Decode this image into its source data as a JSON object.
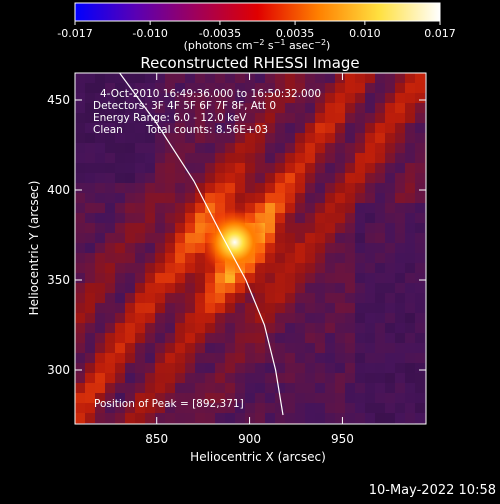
{
  "colorbar": {
    "tick_labels": [
      "-0.017",
      "-0.010",
      "-0.0035",
      "0.0035",
      "0.010",
      "0.017"
    ],
    "tick_values": [
      -0.017,
      -0.01,
      -0.0035,
      0.0035,
      0.01,
      0.017
    ],
    "range": [
      -0.017,
      0.017
    ],
    "stops": [
      "#0000ff",
      "#5a00b4",
      "#a0005a",
      "#e00000",
      "#ff8000",
      "#ffe040",
      "#ffffff"
    ]
  },
  "chart_data": {
    "type": "heatmap",
    "title": "Reconstructed RHESSI Image",
    "units_label_parts": [
      "(photons cm",
      "−2",
      " s",
      "−1",
      " asec",
      "−2",
      ")"
    ],
    "xlabel": "Heliocentric X (arcsec)",
    "ylabel": "Heliocentric Y (arcsec)",
    "xlim": [
      806,
      995
    ],
    "ylim": [
      270,
      465
    ],
    "xticks": [
      850,
      900,
      950
    ],
    "yticks": [
      300,
      350,
      400,
      450
    ],
    "annotations": {
      "time_range": "4-Oct-2010 16:49:36.000 to 16:50:32.000",
      "detectors": "Detectors: 3F 4F 5F 6F 7F 8F, Att 0",
      "energy_range": "Energy Range: 6.0 - 12.0 keV",
      "clean_label": "Clean",
      "total_counts": "Total counts: 8.56E+03",
      "peak": "Position of Peak = [892,371]"
    },
    "peak": [
      892,
      371
    ],
    "limb_curve": [
      [
        830,
        465
      ],
      [
        850,
        437
      ],
      [
        870,
        405
      ],
      [
        885,
        375
      ],
      [
        898,
        350
      ],
      [
        908,
        325
      ],
      [
        914,
        300
      ],
      [
        918,
        275
      ]
    ]
  },
  "footer": {
    "date": "10-May-2022 10:58"
  }
}
